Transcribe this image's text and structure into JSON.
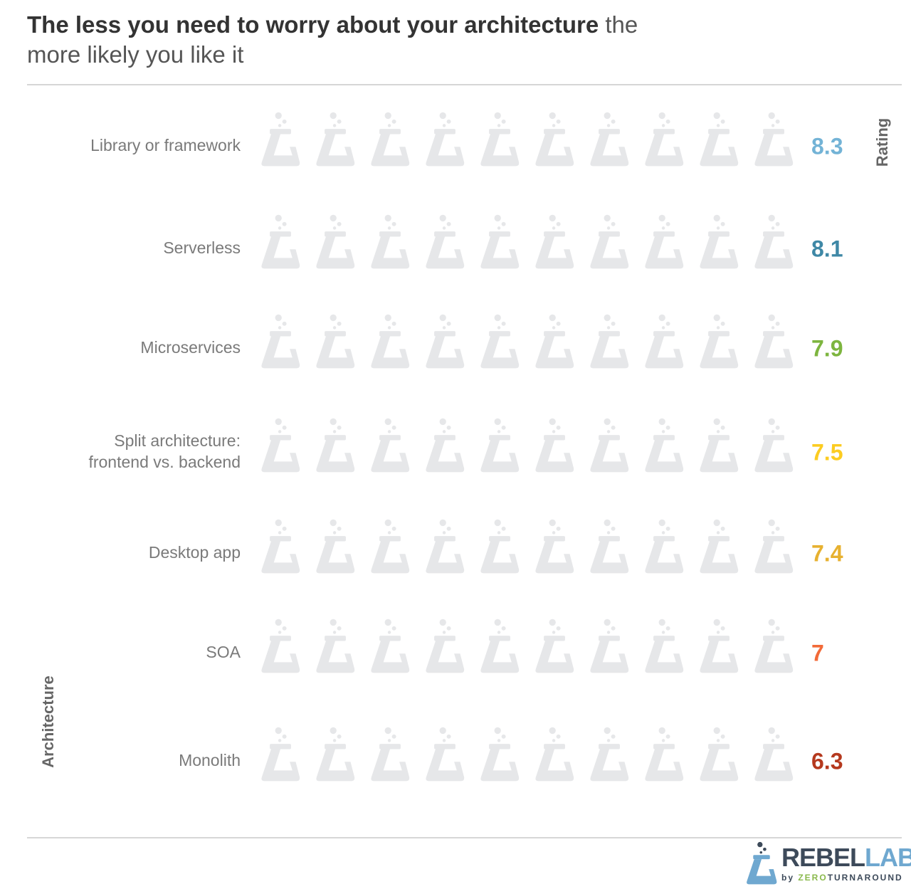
{
  "title": {
    "bold": "The less you need to worry about your architecture",
    "rest_line1": " the",
    "line2": "more likely you like it"
  },
  "axis_labels": {
    "y": "Architecture",
    "rating": "Rating"
  },
  "logo": {
    "rebel": "REBEL",
    "labs": "LABS",
    "by": "by ",
    "zero": "ZERO",
    "turnaround": "TURNAROUND",
    "icon": "flask-logo-icon"
  },
  "colors": {
    "empty": "#e6e7e9"
  },
  "chart_data": {
    "type": "bar",
    "encoding": "pictograph",
    "max": 10,
    "categories": [
      "Library or framework",
      "Serverless",
      "Microservices",
      "Split architecture: frontend vs. backend",
      "Desktop app",
      "SOA",
      "Monolith"
    ],
    "values": [
      8.3,
      8.1,
      7.9,
      7.5,
      7.4,
      7,
      6.3
    ],
    "value_labels": [
      "8.3",
      "8.1",
      "7.9",
      "7.5",
      "7.4",
      "7",
      "6.3"
    ],
    "colors": [
      "#73b3d6",
      "#3f88a6",
      "#7db53f",
      "#fccc21",
      "#e7b130",
      "#f26a38",
      "#b5391e"
    ],
    "label_lines": [
      [
        "Library or framework"
      ],
      [
        "Serverless"
      ],
      [
        "Microservices"
      ],
      [
        "Split architecture:",
        "frontend vs. backend"
      ],
      [
        "Desktop app"
      ],
      [
        "SOA"
      ],
      [
        "Monolith"
      ]
    ]
  }
}
